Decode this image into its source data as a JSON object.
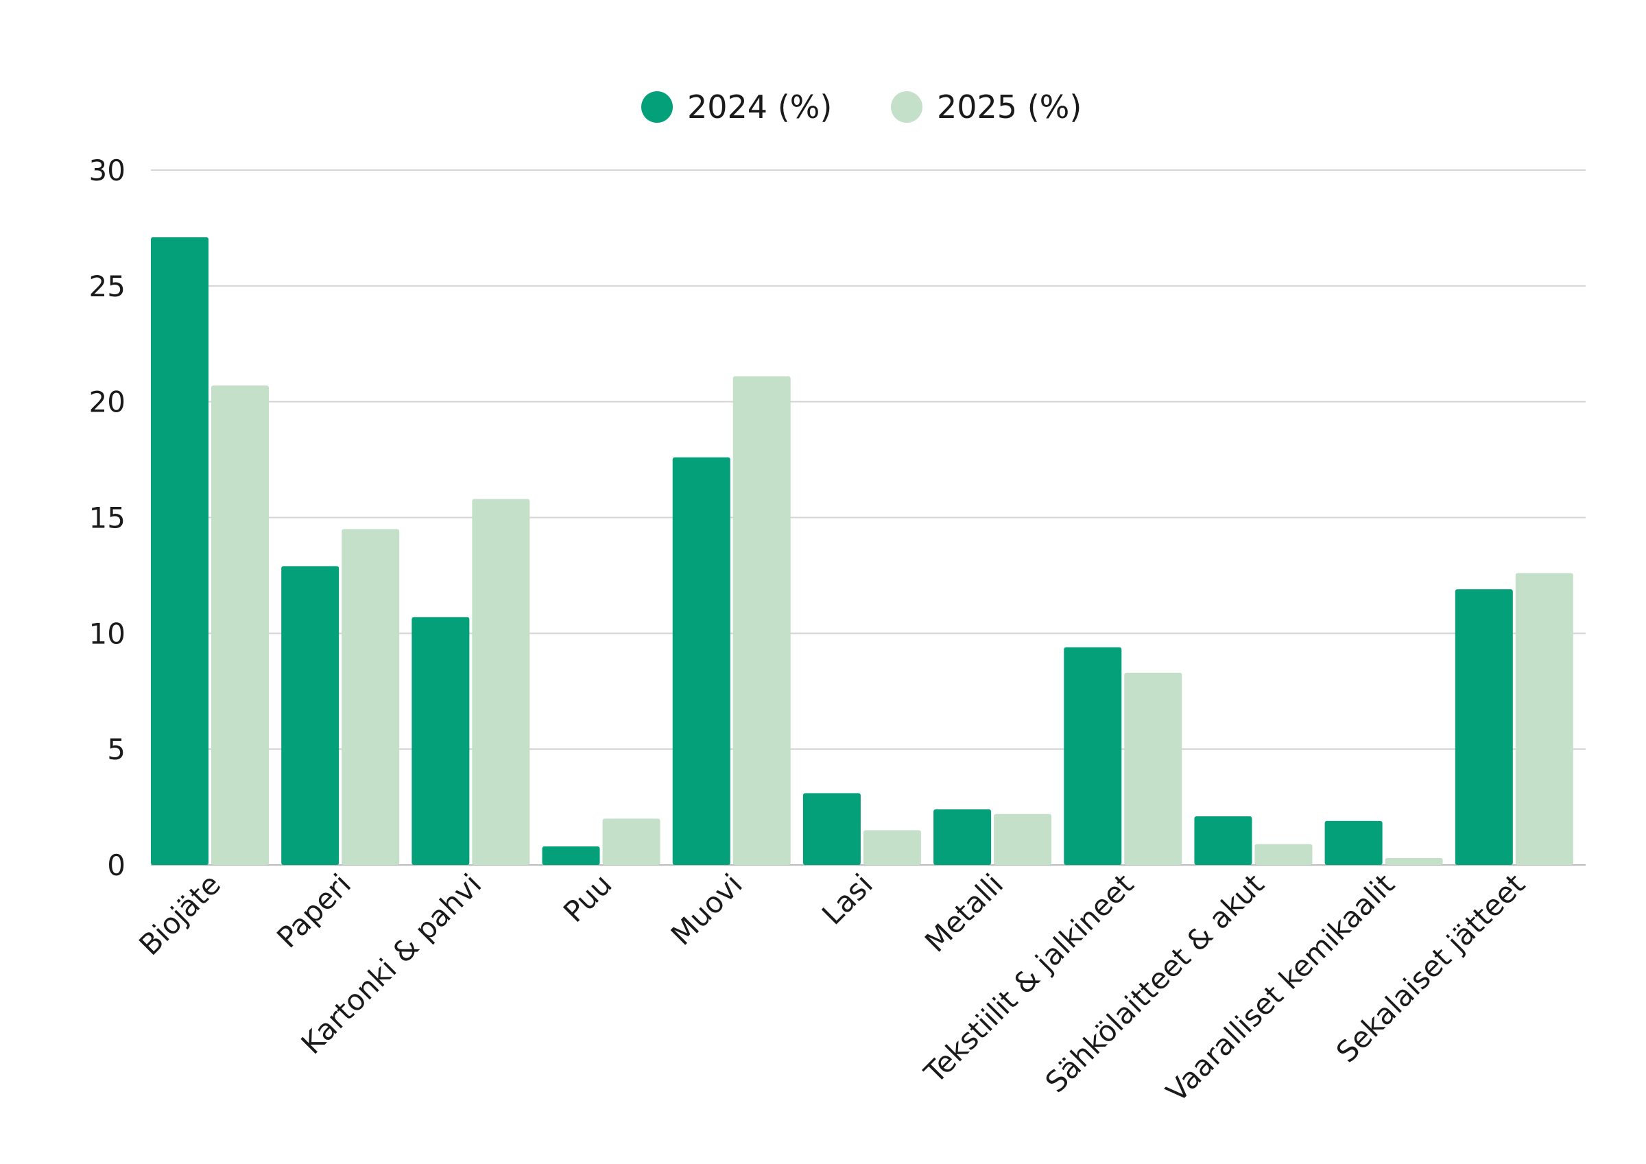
{
  "chart_data": {
    "type": "bar",
    "categories": [
      "Biojäte",
      "Paperi",
      "Kartonki & pahvi",
      "Puu",
      "Muovi",
      "Lasi",
      "Metalli",
      "Tekstiilit & jalkineet",
      "Sähkölaitteet & akut",
      "Vaaralliset kemikaalit",
      "Sekalaiset jätteet"
    ],
    "series": [
      {
        "name": "2024 (%)",
        "color": "#04a07a",
        "values": [
          27.1,
          12.9,
          10.7,
          0.8,
          17.6,
          3.1,
          2.4,
          9.4,
          2.1,
          1.9,
          11.9
        ]
      },
      {
        "name": "2025 (%)",
        "color": "#c5e0c9",
        "values": [
          20.7,
          14.5,
          15.8,
          2.0,
          21.1,
          1.5,
          2.2,
          8.3,
          0.9,
          0.3,
          12.6
        ]
      }
    ],
    "yticks": [
      "0",
      "5",
      "10",
      "15",
      "20",
      "25",
      "30"
    ],
    "ylim": [
      0,
      30
    ],
    "grid": true,
    "legend": "top-center",
    "title": "",
    "xlabel": "",
    "ylabel": ""
  }
}
